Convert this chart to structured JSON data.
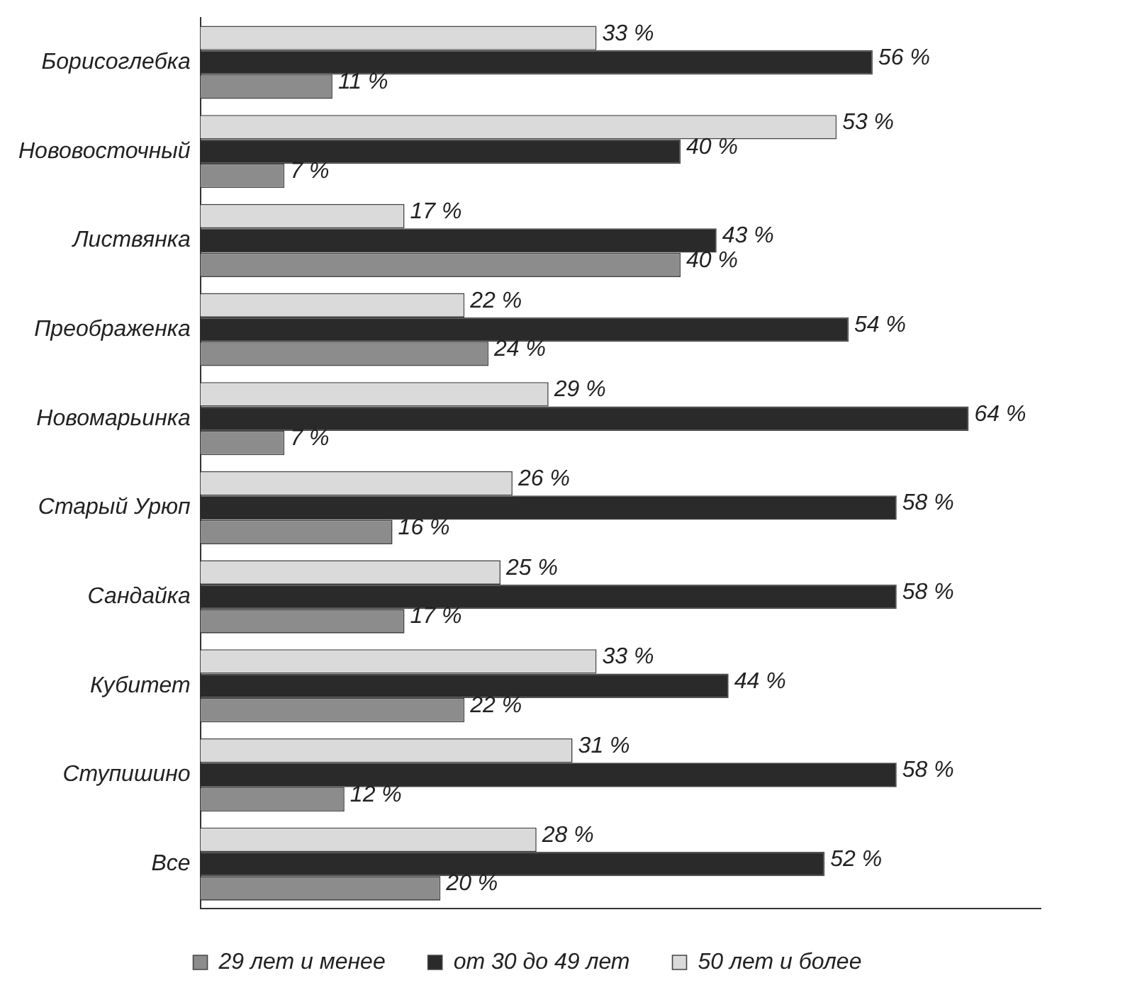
{
  "chart_data": {
    "type": "bar",
    "orientation": "horizontal",
    "categories": [
      "Борисоглебка",
      "Нововосточный",
      "Листвянка",
      "Преображенка",
      "Новомарьинка",
      "Старый Урюп",
      "Сандайка",
      "Кубитет",
      "Ступишино",
      "Все"
    ],
    "series": [
      {
        "name": "29 лет и менее",
        "color": "#8c8c8c",
        "values": [
          11,
          7,
          40,
          24,
          7,
          16,
          17,
          22,
          12,
          20
        ],
        "value_labels": [
          "11 %",
          "7 %",
          "40 %",
          "24 %",
          "7 %",
          "16 %",
          "17 %",
          "22 %",
          "12 %",
          "20 %"
        ]
      },
      {
        "name": "от 30 до 49 лет",
        "color": "#2a2a2a",
        "values": [
          56,
          40,
          43,
          54,
          64,
          58,
          58,
          44,
          58,
          52
        ],
        "value_labels": [
          "56 %",
          "40 %",
          "43 %",
          "54 %",
          "64 %",
          "58 %",
          "58 %",
          "44 %",
          "58 %",
          "52 %"
        ]
      },
      {
        "name": "50 лет и более",
        "color": "#dadada",
        "values": [
          33,
          53,
          17,
          22,
          29,
          26,
          25,
          33,
          31,
          28
        ],
        "value_labels": [
          "33 %",
          "53 %",
          "17 %",
          "22 %",
          "29 %",
          "26 %",
          "25 %",
          "33 %",
          "31 %",
          "28 %"
        ]
      }
    ],
    "legend": "bottom",
    "grid": false,
    "tick_labels": "y"
  }
}
